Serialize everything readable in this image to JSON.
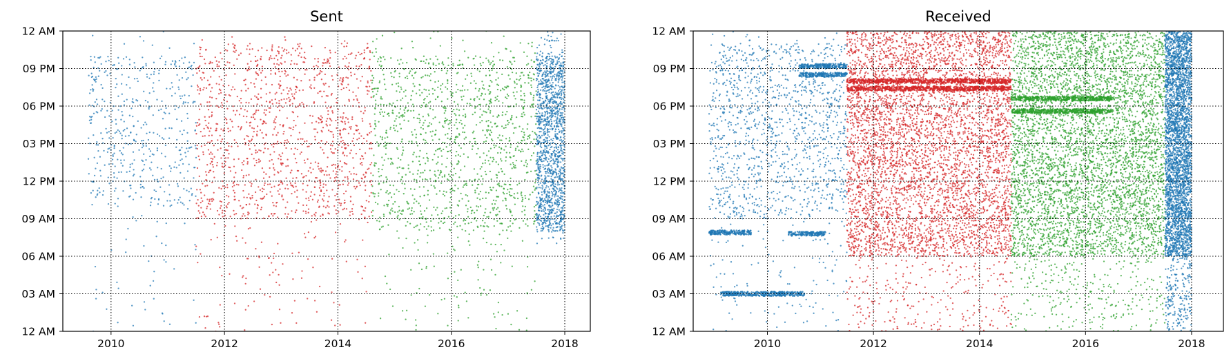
{
  "chart_data": [
    {
      "type": "scatter",
      "title": "Sent",
      "xlabel": "",
      "ylabel": "",
      "xlim": [
        2009.15,
        2018.45
      ],
      "ylim": [
        0,
        24
      ],
      "x_ticks": [
        2010,
        2012,
        2014,
        2016,
        2018
      ],
      "x_tick_labels": [
        "2010",
        "2012",
        "2014",
        "2016",
        "2018"
      ],
      "y_ticks": [
        0,
        3,
        6,
        9,
        12,
        15,
        18,
        21,
        24
      ],
      "y_tick_labels": [
        "12 AM",
        "03 AM",
        "06 AM",
        "09 AM",
        "12 PM",
        "03 PM",
        "06 PM",
        "09 PM",
        "12 AM"
      ],
      "grid": true,
      "grid_style": "dotted",
      "legend": "none",
      "series": [
        {
          "color": "#1f77b4",
          "x_range": [
            2009.6,
            2011.5
          ],
          "hour_range": [
            0,
            24
          ],
          "density": "sparse",
          "concentration": "10 AM – 10 PM"
        },
        {
          "color": "#d62728",
          "x_range": [
            2011.5,
            2014.6
          ],
          "hour_range": [
            0,
            24
          ],
          "density": "medium",
          "concentration": "9 AM – 11 PM"
        },
        {
          "color": "#2ca02c",
          "x_range": [
            2014.6,
            2017.5
          ],
          "hour_range": [
            0,
            24
          ],
          "density": "medium",
          "concentration": "8 AM – 10 PM"
        },
        {
          "color": "#1f77b4",
          "x_range": [
            2017.5,
            2018.0
          ],
          "hour_range": [
            7,
            24
          ],
          "density": "medium",
          "concentration": "8 AM – 11 PM"
        }
      ]
    },
    {
      "type": "scatter",
      "title": "Received",
      "xlabel": "",
      "ylabel": "",
      "xlim": [
        2008.6,
        2018.6
      ],
      "ylim": [
        0,
        24
      ],
      "x_ticks": [
        2010,
        2012,
        2014,
        2016,
        2018
      ],
      "x_tick_labels": [
        "2010",
        "2012",
        "2014",
        "2016",
        "2018"
      ],
      "y_ticks": [
        0,
        3,
        6,
        9,
        12,
        15,
        18,
        21,
        24
      ],
      "y_tick_labels": [
        "12 AM",
        "03 AM",
        "06 AM",
        "09 AM",
        "12 PM",
        "03 PM",
        "06 PM",
        "09 PM",
        "12 AM"
      ],
      "grid": true,
      "grid_style": "dotted",
      "legend": "none",
      "series": [
        {
          "color": "#1f77b4",
          "x_range": [
            2008.9,
            2011.5
          ],
          "hour_range": [
            0,
            24
          ],
          "density": "medium",
          "bands": [
            {
              "x_range": [
                2008.9,
                2009.7
              ],
              "hour": 7.9
            },
            {
              "x_range": [
                2009.1,
                2010.7
              ],
              "hour": 3.0
            },
            {
              "x_range": [
                2010.6,
                2011.5
              ],
              "hour": 21.2
            },
            {
              "x_range": [
                2010.6,
                2011.5
              ],
              "hour": 20.5
            },
            {
              "x_range": [
                2010.4,
                2011.1
              ],
              "hour": 7.8
            }
          ]
        },
        {
          "color": "#d62728",
          "x_range": [
            2011.5,
            2014.6
          ],
          "hour_range": [
            0,
            24
          ],
          "density": "dense",
          "bands": [
            {
              "x_range": [
                2011.5,
                2014.6
              ],
              "hour": 20.0
            },
            {
              "x_range": [
                2011.5,
                2014.6
              ],
              "hour": 19.4
            }
          ]
        },
        {
          "color": "#2ca02c",
          "x_range": [
            2014.6,
            2017.5
          ],
          "hour_range": [
            0,
            24
          ],
          "density": "dense",
          "bands": [
            {
              "x_range": [
                2014.6,
                2016.5
              ],
              "hour": 18.6
            },
            {
              "x_range": [
                2014.6,
                2016.5
              ],
              "hour": 17.6
            }
          ]
        },
        {
          "color": "#1f77b4",
          "x_range": [
            2017.5,
            2018.0
          ],
          "hour_range": [
            0,
            24
          ],
          "density": "very dense"
        }
      ]
    }
  ]
}
